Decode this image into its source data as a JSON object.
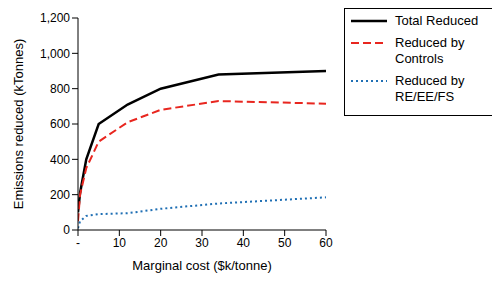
{
  "chart_data": {
    "type": "line",
    "x_label": "Marginal cost ($k/tonne)",
    "y_label": "Emissions reduced (kTonnes)",
    "x": [
      0,
      0.5,
      2,
      5,
      12,
      20,
      34,
      60
    ],
    "xlim": [
      0,
      60
    ],
    "xticks": [
      {
        "value": 0,
        "label": "-"
      },
      10,
      20,
      30,
      40,
      50,
      60
    ],
    "ylim": [
      0,
      1200
    ],
    "yticks": [
      0,
      200,
      400,
      600,
      800,
      {
        "value": 1000,
        "label": "1,000"
      },
      {
        "value": 1200,
        "label": "1,200"
      }
    ],
    "grid": false,
    "legend": "right",
    "series": [
      {
        "name": "Total Reduced",
        "color": "#000000",
        "line_style": "solid",
        "values": [
          100,
          210,
          400,
          600,
          710,
          800,
          880,
          900
        ]
      },
      {
        "name": "Reduced by Controls",
        "color": "#e8261f",
        "line_style": "dashed",
        "values": [
          50,
          200,
          350,
          500,
          610,
          680,
          730,
          715
        ]
      },
      {
        "name": "Reduced by RE/EE/FS",
        "color": "#1f6fb4",
        "line_style": "dotted",
        "values": [
          10,
          50,
          80,
          90,
          95,
          120,
          150,
          185
        ]
      }
    ]
  }
}
